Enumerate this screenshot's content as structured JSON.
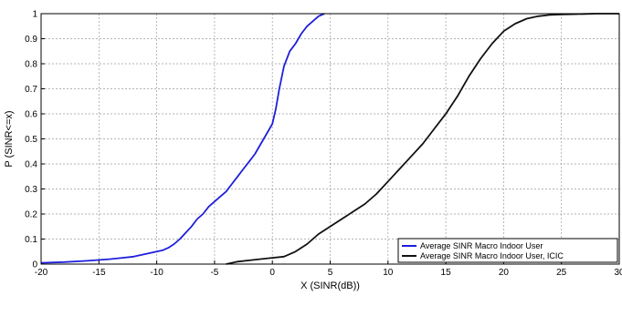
{
  "chart_data": {
    "type": "line",
    "title": "",
    "xlabel": "X (SINR(dB))",
    "ylabel": "P (SINR<=x)",
    "xlim": [
      -20,
      30
    ],
    "ylim": [
      0,
      1
    ],
    "x_ticks": [
      "-20",
      "-15",
      "-10",
      "-5",
      "0",
      "5",
      "10",
      "15",
      "20",
      "25",
      "30"
    ],
    "y_ticks": [
      "0",
      "0.1",
      "0.2",
      "0.3",
      "0.4",
      "0.5",
      "0.6",
      "0.7",
      "0.8",
      "0.9",
      "1"
    ],
    "grid": true,
    "legend_position": "bottom-right",
    "series": [
      {
        "name": "Average SINR  Macro Indoor User",
        "color": "#1f1fdc",
        "x": [
          -20,
          -18,
          -16,
          -14,
          -12,
          -11,
          -10,
          -9.5,
          -9,
          -8.5,
          -8,
          -7.5,
          -7,
          -6.5,
          -6,
          -5.5,
          -5,
          -4.5,
          -4,
          -3.5,
          -3,
          -2.5,
          -2,
          -1.5,
          -1,
          -0.5,
          0,
          0.3,
          0.6,
          1,
          1.5,
          2,
          2.5,
          3,
          3.5,
          4,
          4.5
        ],
        "values": [
          0.005,
          0.008,
          0.013,
          0.02,
          0.03,
          0.04,
          0.05,
          0.055,
          0.065,
          0.08,
          0.1,
          0.125,
          0.15,
          0.18,
          0.2,
          0.23,
          0.25,
          0.27,
          0.29,
          0.32,
          0.35,
          0.38,
          0.41,
          0.44,
          0.48,
          0.52,
          0.56,
          0.62,
          0.7,
          0.79,
          0.85,
          0.88,
          0.92,
          0.95,
          0.97,
          0.99,
          1.0
        ]
      },
      {
        "name": "Average SINR  Macro Indoor User, ICIC",
        "color": "#111111",
        "x": [
          -4,
          -3,
          -2,
          -1,
          0,
          1,
          2,
          3,
          4,
          5,
          6,
          7,
          8,
          9,
          10,
          11,
          12,
          13,
          14,
          15,
          16,
          17,
          18,
          19,
          20,
          21,
          22,
          23,
          24,
          25,
          26,
          27,
          28,
          30
        ],
        "values": [
          0.0,
          0.01,
          0.015,
          0.02,
          0.025,
          0.03,
          0.05,
          0.08,
          0.12,
          0.15,
          0.18,
          0.21,
          0.24,
          0.28,
          0.33,
          0.38,
          0.43,
          0.48,
          0.54,
          0.6,
          0.67,
          0.75,
          0.82,
          0.88,
          0.93,
          0.96,
          0.98,
          0.99,
          0.995,
          0.997,
          0.998,
          0.999,
          1.0,
          1.0
        ]
      }
    ]
  }
}
